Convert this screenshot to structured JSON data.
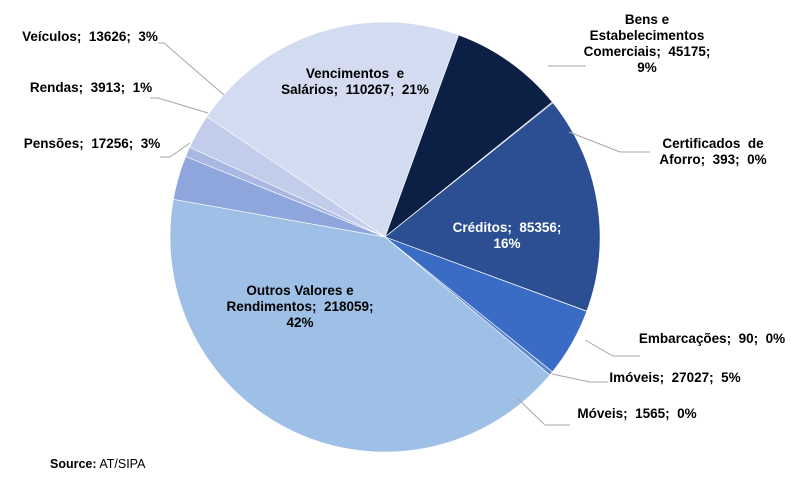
{
  "chart_data": {
    "type": "pie",
    "start_angle_deg": 20,
    "direction": "clockwise",
    "slices": [
      {
        "label": "Bens e Estabelecimentos Comerciais",
        "value": 45175,
        "percent": "9%",
        "color": "#0c1f45",
        "text_color": "#000000",
        "lines": [
          "Bens e",
          "Estabelecimentos",
          "Comerciais;  45175;",
          "9%"
        ]
      },
      {
        "label": "Certificados de Aforro",
        "value": 393,
        "percent": "0%",
        "color": "#3a5a94",
        "text_color": "#000000",
        "lines": [
          "Certificados  de",
          "Aforro;  393;  0%"
        ]
      },
      {
        "label": "Créditos",
        "value": 85356,
        "percent": "16%",
        "color": "#2b4f92",
        "text_color": "#ffffff",
        "lines": [
          "Créditos;  85356;",
          "16%"
        ]
      },
      {
        "label": "Embarcações",
        "value": 90,
        "percent": "0%",
        "color": "#3d64b0",
        "text_color": "#000000",
        "lines": [
          "Embarcações;  90;  0%"
        ]
      },
      {
        "label": "Imóveis",
        "value": 27027,
        "percent": "5%",
        "color": "#3a6cc6",
        "text_color": "#000000",
        "lines": [
          "Imóveis;  27027;  5%"
        ]
      },
      {
        "label": "Móveis",
        "value": 1565,
        "percent": "0%",
        "color": "#5d86cf",
        "text_color": "#000000",
        "lines": [
          "Móveis;  1565;  0%"
        ]
      },
      {
        "label": "Outros Valores e Rendimentos",
        "value": 218059,
        "percent": "42%",
        "color": "#9ec0e6",
        "text_color": "#000000",
        "lines": [
          "Outros Valores e",
          "Rendimentos;  218059;",
          "42%"
        ]
      },
      {
        "label": "Pensões",
        "value": 17256,
        "percent": "3%",
        "color": "#8ea6dc",
        "text_color": "#000000",
        "lines": [
          "Pensões;  17256;  3%"
        ]
      },
      {
        "label": "Rendas",
        "value": 3913,
        "percent": "1%",
        "color": "#a8b8e2",
        "text_color": "#000000",
        "lines": [
          "Rendas;  3913;  1%"
        ]
      },
      {
        "label": "Veículos",
        "value": 13626,
        "percent": "3%",
        "color": "#c1cdeb",
        "text_color": "#000000",
        "lines": [
          "Veículos;  13626;  3%"
        ]
      },
      {
        "label": "Vencimentos e Salários",
        "value": 110267,
        "percent": "21%",
        "color": "#d3dbf1",
        "text_color": "#000000",
        "lines": [
          "Vencimentos  e",
          "Salários;  110267;  21%"
        ]
      }
    ]
  },
  "source": {
    "label": "Source:",
    "text": "AT/SIPA"
  }
}
